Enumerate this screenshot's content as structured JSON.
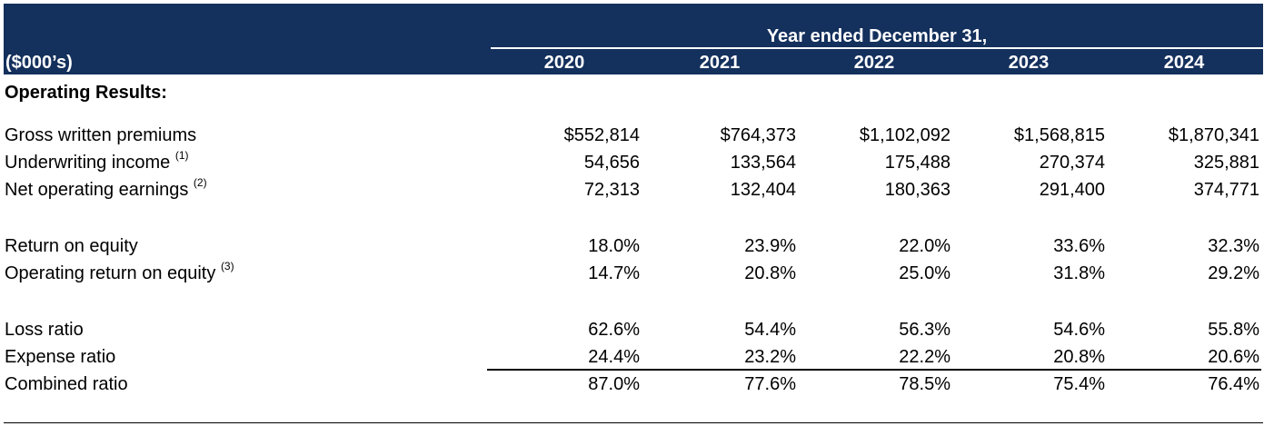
{
  "header": {
    "span_title": "Year ended December 31,",
    "units": "($000’s)",
    "years": [
      "2020",
      "2021",
      "2022",
      "2023",
      "2024"
    ]
  },
  "section_title": "Operating Results:",
  "rows": [
    {
      "label": "Gross written premiums",
      "note": "",
      "values": [
        "$552,814",
        "$764,373",
        "$1,102,092",
        "$1,568,815",
        "$1,870,341"
      ]
    },
    {
      "label": "Underwriting income",
      "note": "(1)",
      "values": [
        "54,656",
        "133,564",
        "175,488",
        "270,374",
        "325,881"
      ]
    },
    {
      "label": "Net operating earnings",
      "note": "(2)",
      "values": [
        "72,313",
        "132,404",
        "180,363",
        "291,400",
        "374,771"
      ]
    },
    {
      "label": "Return on equity",
      "note": "",
      "values": [
        "18.0%",
        "23.9%",
        "22.0%",
        "33.6%",
        "32.3%"
      ]
    },
    {
      "label": "Operating return on equity",
      "note": "(3)",
      "values": [
        "14.7%",
        "20.8%",
        "25.0%",
        "31.8%",
        "29.2%"
      ]
    },
    {
      "label": "Loss ratio",
      "note": "",
      "values": [
        "62.6%",
        "54.4%",
        "56.3%",
        "54.6%",
        "55.8%"
      ]
    },
    {
      "label": "Expense ratio",
      "note": "",
      "values": [
        "24.4%",
        "23.2%",
        "22.2%",
        "20.8%",
        "20.6%"
      ]
    },
    {
      "label": "Combined ratio",
      "note": "",
      "values": [
        "87.0%",
        "77.6%",
        "78.5%",
        "75.4%",
        "76.4%"
      ]
    }
  ],
  "colors": {
    "header_bg": "#14305c",
    "header_text": "#ffffff"
  }
}
